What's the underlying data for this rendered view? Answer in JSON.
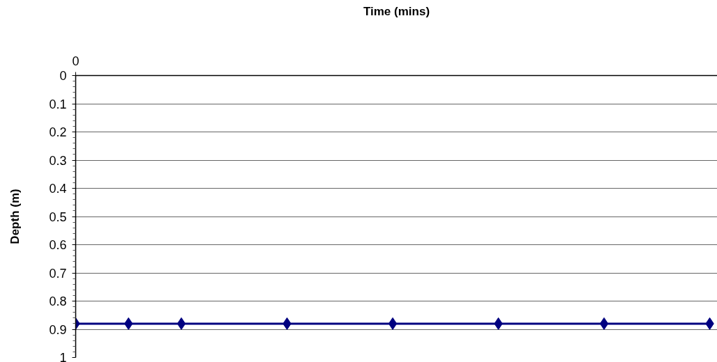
{
  "chart_data": {
    "type": "scatter",
    "xlabel": "Time (mins)",
    "ylabel": "Depth (m)",
    "categories": [
      "0",
      null,
      null,
      null,
      null,
      null,
      null,
      null,
      null,
      null,
      null,
      null,
      null
    ],
    "series": [
      {
        "color": "#000080",
        "values": [
          0.88,
          0.88,
          0.88,
          null,
          0.88,
          null,
          0.88,
          null,
          0.88,
          null,
          0.88,
          null,
          0.88
        ]
      },
      {
        "type": "line",
        "marker": "none",
        "color": "#000080",
        "values": [
          0.88,
          0.88,
          0.88,
          0.88,
          0.88,
          0.88,
          0.88,
          0.88,
          0.88,
          0.88,
          0.88,
          0.88,
          0.88
        ]
      }
    ],
    "ylim": [
      1,
      0
    ],
    "yticks": [
      0,
      0.1,
      0.2,
      0.3,
      0.4,
      0.5,
      0.6,
      0.7,
      0.8,
      0.9,
      1
    ],
    "grid": "y",
    "marker": "diamond",
    "line_style": "solid"
  }
}
